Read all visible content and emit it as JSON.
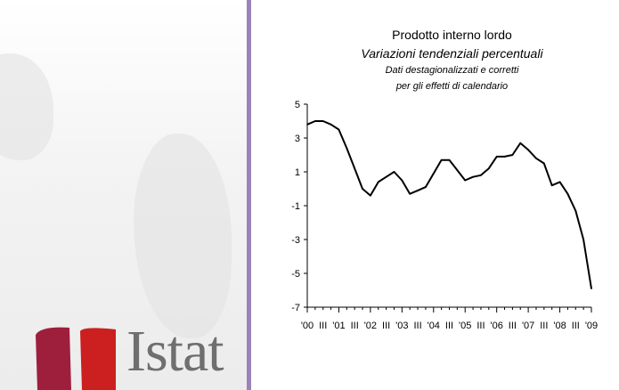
{
  "brand": {
    "name": "Istat"
  },
  "chart_data": {
    "type": "line",
    "title": "Prodotto interno lordo",
    "subtitle": "Variazioni tendenziali percentuali",
    "note_line1": "Dati destagionalizzati e corretti",
    "note_line2": "per gli effetti di calendario",
    "ylim": [
      -7,
      5
    ],
    "y_ticks": [
      "5",
      "3",
      "1",
      "-1",
      "-3",
      "-5",
      "-7"
    ],
    "x_tick_labels": [
      "'00",
      "III",
      "'01",
      "III",
      "'02",
      "III",
      "'03",
      "III",
      "'04",
      "III",
      "'05",
      "III",
      "'06",
      "III",
      "'07",
      "III",
      "'08",
      "III",
      "'09"
    ],
    "grid": false,
    "series": [
      {
        "values": [
          3.8,
          4.0,
          4.0,
          3.8,
          3.5,
          2.4,
          1.2,
          0.0,
          -0.4,
          0.4,
          0.7,
          1.0,
          0.5,
          -0.3,
          -0.1,
          0.1,
          0.9,
          1.7,
          1.7,
          1.1,
          0.5,
          0.7,
          0.8,
          1.2,
          1.9,
          1.9,
          2.0,
          2.7,
          2.3,
          1.8,
          1.5,
          0.2,
          0.4,
          -0.3,
          -1.3,
          -3.0,
          -5.9
        ],
        "color": "#000000"
      }
    ]
  }
}
